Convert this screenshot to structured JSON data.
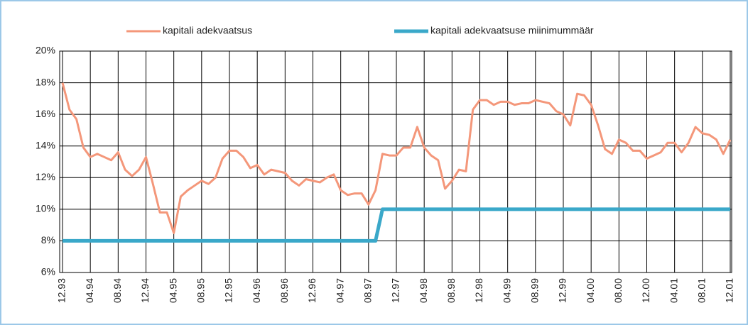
{
  "chart_data": {
    "type": "line",
    "categories": [
      "12.93",
      null,
      null,
      null,
      "04.94",
      null,
      null,
      null,
      "08.94",
      null,
      null,
      null,
      "12.94",
      null,
      null,
      null,
      "04.95",
      null,
      null,
      null,
      "08.95",
      null,
      null,
      null,
      "12.95",
      null,
      null,
      null,
      "04.96",
      null,
      null,
      null,
      "08.96",
      null,
      null,
      null,
      "12.96",
      null,
      null,
      null,
      "04.97",
      null,
      null,
      null,
      "08.97",
      null,
      null,
      null,
      "12.97",
      null,
      null,
      null,
      "04.98",
      null,
      null,
      null,
      "08.98",
      null,
      null,
      null,
      "12.98",
      null,
      null,
      null,
      "04.99",
      null,
      null,
      null,
      "08.99",
      null,
      null,
      null,
      "12.99",
      null,
      null,
      null,
      "04.00",
      null,
      null,
      null,
      "08.00",
      null,
      null,
      null,
      "12.00",
      null,
      null,
      null,
      "04.01",
      null,
      null,
      null,
      "08.01",
      null,
      null,
      null,
      "12.01"
    ],
    "series": [
      {
        "name": "kapitali adekvaatsus",
        "color": "#f4977a",
        "values": [
          18.0,
          16.3,
          15.7,
          13.9,
          13.3,
          13.5,
          13.3,
          13.1,
          13.6,
          12.5,
          12.1,
          12.5,
          13.3,
          11.6,
          9.8,
          9.8,
          8.5,
          10.8,
          11.2,
          11.5,
          11.8,
          11.6,
          12.0,
          13.2,
          13.7,
          13.7,
          13.3,
          12.6,
          12.8,
          12.2,
          12.5,
          12.4,
          12.3,
          11.8,
          11.5,
          11.9,
          11.8,
          11.7,
          12.0,
          12.2,
          11.2,
          10.9,
          11.0,
          11.0,
          10.3,
          11.2,
          13.5,
          13.4,
          13.4,
          13.9,
          13.9,
          15.2,
          13.9,
          13.4,
          13.1,
          11.3,
          11.8,
          12.5,
          12.4,
          16.3,
          16.9,
          16.9,
          16.6,
          16.8,
          16.8,
          16.6,
          16.7,
          16.7,
          16.9,
          16.8,
          16.7,
          16.2,
          16.0,
          15.3,
          17.3,
          17.2,
          16.6,
          15.3,
          13.8,
          13.5,
          14.4,
          14.2,
          13.7,
          13.7,
          13.2,
          13.4,
          13.6,
          14.2,
          14.2,
          13.6,
          14.2,
          15.2,
          14.8,
          14.7,
          14.4,
          13.5,
          14.4
        ]
      },
      {
        "name": "kapitali adekvaatsuse miinimummäär",
        "color": "#3aa8c9",
        "values": [
          8,
          8,
          8,
          8,
          8,
          8,
          8,
          8,
          8,
          8,
          8,
          8,
          8,
          8,
          8,
          8,
          8,
          8,
          8,
          8,
          8,
          8,
          8,
          8,
          8,
          8,
          8,
          8,
          8,
          8,
          8,
          8,
          8,
          8,
          8,
          8,
          8,
          8,
          8,
          8,
          8,
          8,
          8,
          8,
          8,
          8,
          10,
          10,
          10,
          10,
          10,
          10,
          10,
          10,
          10,
          10,
          10,
          10,
          10,
          10,
          10,
          10,
          10,
          10,
          10,
          10,
          10,
          10,
          10,
          10,
          10,
          10,
          10,
          10,
          10,
          10,
          10,
          10,
          10,
          10,
          10,
          10,
          10,
          10,
          10,
          10,
          10,
          10,
          10,
          10,
          10,
          10,
          10,
          10,
          10,
          10,
          10
        ]
      }
    ],
    "ylim": [
      6,
      20
    ],
    "yticks": [
      {
        "value": 6,
        "label": "6%"
      },
      {
        "value": 8,
        "label": "8%"
      },
      {
        "value": 10,
        "label": "10%"
      },
      {
        "value": 12,
        "label": "12%"
      },
      {
        "value": 14,
        "label": "14%"
      },
      {
        "value": 16,
        "label": "16%"
      },
      {
        "value": 18,
        "label": "18%"
      },
      {
        "value": 20,
        "label": "20%"
      }
    ],
    "grid": true
  }
}
